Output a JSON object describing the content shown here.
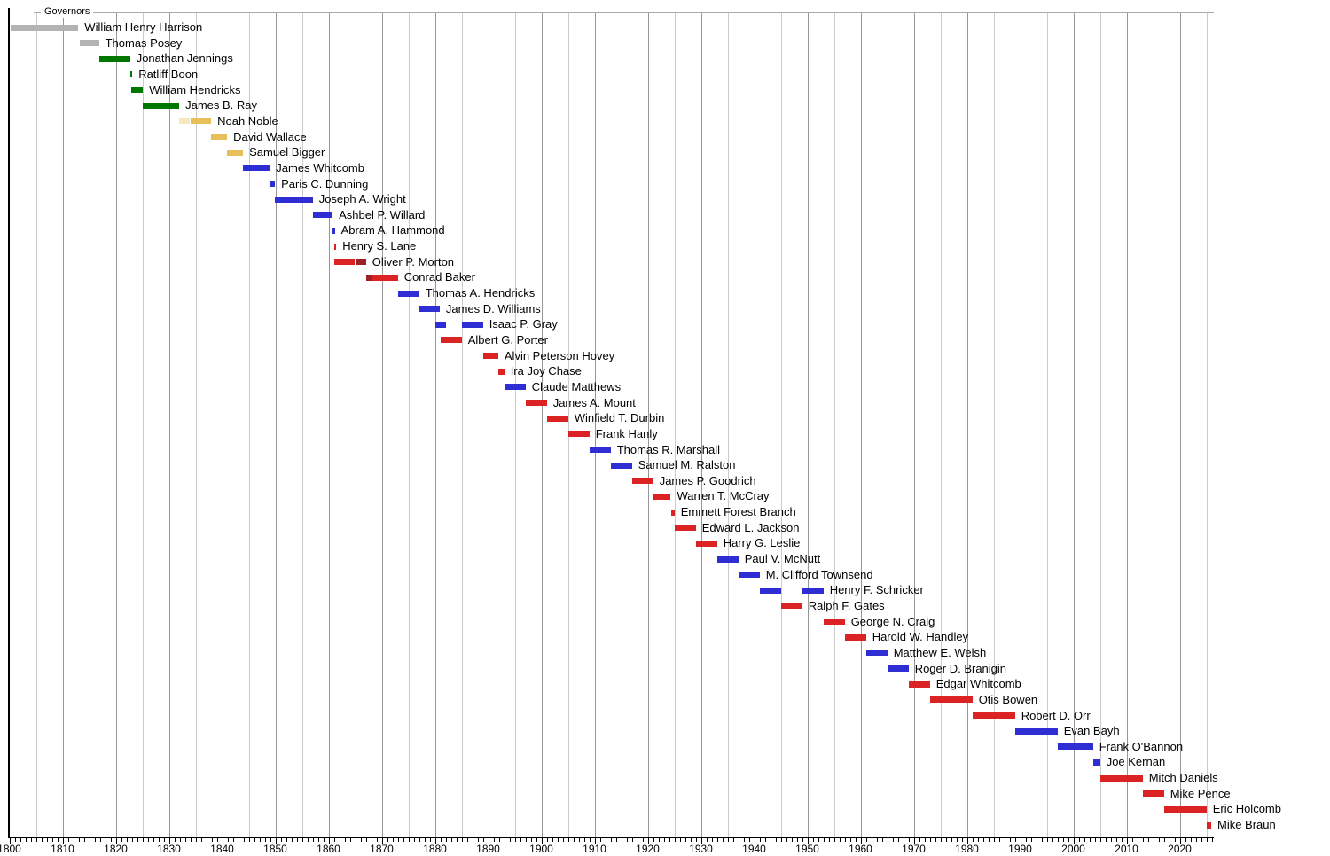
{
  "chart_data": {
    "type": "timeline",
    "title": "Governors",
    "x_axis": {
      "min": 1800,
      "max": 2026.3,
      "gridline_interval_years": 5,
      "label_interval_years": 10,
      "tick_labels": [
        "1800",
        "1810",
        "1820",
        "1830",
        "1840",
        "1850",
        "1860",
        "1870",
        "1880",
        "1890",
        "1900",
        "1910",
        "1920",
        "1930",
        "1940",
        "1950",
        "1960",
        "1970",
        "1980",
        "1990",
        "2000",
        "2010",
        "2020"
      ]
    },
    "party_colors": {
      "territorial": "#b3b3b3",
      "democratic_republican": "#007700",
      "national_republican": "#f6e8bb",
      "whig": "#e7c05c",
      "democratic": "#2e2ed4",
      "republican": "#dc2323",
      "national_union": "#9b2126"
    },
    "rows": [
      {
        "name": "William Henry Harrison",
        "segments": [
          {
            "start": 1800.3,
            "end": 1812.97,
            "party": "territorial"
          }
        ]
      },
      {
        "name": "Thomas Posey",
        "segments": [
          {
            "start": 1813.2,
            "end": 1816.85,
            "party": "territorial"
          }
        ]
      },
      {
        "name": "Jonathan Jennings",
        "segments": [
          {
            "start": 1816.85,
            "end": 1822.7,
            "party": "democratic_republican"
          }
        ]
      },
      {
        "name": "Ratliff Boon",
        "segments": [
          {
            "start": 1822.7,
            "end": 1823.0,
            "party": "democratic_republican"
          }
        ]
      },
      {
        "name": "William Hendricks",
        "segments": [
          {
            "start": 1822.95,
            "end": 1825.12,
            "party": "democratic_republican"
          }
        ]
      },
      {
        "name": "James B. Ray",
        "segments": [
          {
            "start": 1825.12,
            "end": 1831.93,
            "party": "democratic_republican"
          }
        ]
      },
      {
        "name": "Noah Noble",
        "segments": [
          {
            "start": 1831.93,
            "end": 1834.0,
            "party": "national_republican"
          },
          {
            "start": 1834.0,
            "end": 1837.93,
            "party": "whig"
          }
        ]
      },
      {
        "name": "David Wallace",
        "segments": [
          {
            "start": 1837.93,
            "end": 1840.93,
            "party": "whig"
          }
        ]
      },
      {
        "name": "Samuel Bigger",
        "segments": [
          {
            "start": 1840.93,
            "end": 1843.94,
            "party": "whig"
          }
        ]
      },
      {
        "name": "James Whitcomb",
        "segments": [
          {
            "start": 1843.94,
            "end": 1848.97,
            "party": "democratic"
          }
        ]
      },
      {
        "name": "Paris C. Dunning",
        "segments": [
          {
            "start": 1848.97,
            "end": 1849.93,
            "party": "democratic"
          }
        ]
      },
      {
        "name": "Joseph A. Wright",
        "segments": [
          {
            "start": 1849.93,
            "end": 1857.03,
            "party": "democratic"
          }
        ]
      },
      {
        "name": "Ashbel P. Willard",
        "segments": [
          {
            "start": 1857.03,
            "end": 1860.76,
            "party": "democratic"
          }
        ]
      },
      {
        "name": "Abram A. Hammond",
        "segments": [
          {
            "start": 1860.76,
            "end": 1861.04,
            "party": "democratic"
          }
        ]
      },
      {
        "name": "Henry S. Lane",
        "segments": [
          {
            "start": 1861.04,
            "end": 1861.1,
            "party": "republican"
          }
        ]
      },
      {
        "name": "Oliver P. Morton",
        "segments": [
          {
            "start": 1861.04,
            "end": 1865.0,
            "party": "republican"
          },
          {
            "start": 1865.0,
            "end": 1867.05,
            "party": "national_union"
          }
        ]
      },
      {
        "name": "Conrad Baker",
        "segments": [
          {
            "start": 1867.05,
            "end": 1868.1,
            "party": "national_union"
          },
          {
            "start": 1868.1,
            "end": 1873.04,
            "party": "republican"
          }
        ]
      },
      {
        "name": "Thomas A. Hendricks",
        "segments": [
          {
            "start": 1873.04,
            "end": 1877.04,
            "party": "democratic"
          }
        ]
      },
      {
        "name": "James D. Williams",
        "segments": [
          {
            "start": 1877.04,
            "end": 1880.9,
            "party": "democratic"
          }
        ]
      },
      {
        "name": "Isaac P. Gray",
        "segments": [
          {
            "start": 1880.0,
            "end": 1882.0,
            "party": "democratic"
          },
          {
            "start": 1885.04,
            "end": 1889.04,
            "party": "democratic"
          }
        ]
      },
      {
        "name": "Albert G. Porter",
        "segments": [
          {
            "start": 1881.04,
            "end": 1885.04,
            "party": "republican"
          }
        ]
      },
      {
        "name": "Alvin Peterson Hovey",
        "segments": [
          {
            "start": 1889.04,
            "end": 1891.9,
            "party": "republican"
          }
        ]
      },
      {
        "name": "Ira Joy Chase",
        "segments": [
          {
            "start": 1891.9,
            "end": 1893.04,
            "party": "republican"
          }
        ]
      },
      {
        "name": "Claude Matthews",
        "segments": [
          {
            "start": 1893.04,
            "end": 1897.04,
            "party": "democratic"
          }
        ]
      },
      {
        "name": "James A. Mount",
        "segments": [
          {
            "start": 1897.04,
            "end": 1901.04,
            "party": "republican"
          }
        ]
      },
      {
        "name": "Winfield T. Durbin",
        "segments": [
          {
            "start": 1901.04,
            "end": 1905.04,
            "party": "republican"
          }
        ]
      },
      {
        "name": "Frank Hanly",
        "segments": [
          {
            "start": 1905.04,
            "end": 1909.04,
            "party": "republican"
          }
        ]
      },
      {
        "name": "Thomas R. Marshall",
        "segments": [
          {
            "start": 1909.04,
            "end": 1913.04,
            "party": "democratic"
          }
        ]
      },
      {
        "name": "Samuel M. Ralston",
        "segments": [
          {
            "start": 1913.04,
            "end": 1917.04,
            "party": "democratic"
          }
        ]
      },
      {
        "name": "James P. Goodrich",
        "segments": [
          {
            "start": 1917.04,
            "end": 1921.04,
            "party": "republican"
          }
        ]
      },
      {
        "name": "Warren T. McCray",
        "segments": [
          {
            "start": 1921.04,
            "end": 1924.33,
            "party": "republican"
          }
        ]
      },
      {
        "name": "Emmett Forest Branch",
        "segments": [
          {
            "start": 1924.33,
            "end": 1925.04,
            "party": "republican"
          }
        ]
      },
      {
        "name": "Edward L. Jackson",
        "segments": [
          {
            "start": 1925.04,
            "end": 1929.04,
            "party": "republican"
          }
        ]
      },
      {
        "name": "Harry G. Leslie",
        "segments": [
          {
            "start": 1929.04,
            "end": 1933.04,
            "party": "republican"
          }
        ]
      },
      {
        "name": "Paul V. McNutt",
        "segments": [
          {
            "start": 1933.04,
            "end": 1937.04,
            "party": "democratic"
          }
        ]
      },
      {
        "name": "M. Clifford Townsend",
        "segments": [
          {
            "start": 1937.04,
            "end": 1941.04,
            "party": "democratic"
          }
        ]
      },
      {
        "name": "Henry F. Schricker",
        "segments": [
          {
            "start": 1941.04,
            "end": 1945.04,
            "party": "democratic"
          },
          {
            "start": 1949.04,
            "end": 1953.04,
            "party": "democratic"
          }
        ]
      },
      {
        "name": "Ralph F. Gates",
        "segments": [
          {
            "start": 1945.04,
            "end": 1949.04,
            "party": "republican"
          }
        ]
      },
      {
        "name": "George N. Craig",
        "segments": [
          {
            "start": 1953.04,
            "end": 1957.04,
            "party": "republican"
          }
        ]
      },
      {
        "name": "Harold W. Handley",
        "segments": [
          {
            "start": 1957.04,
            "end": 1961.04,
            "party": "republican"
          }
        ]
      },
      {
        "name": "Matthew E. Welsh",
        "segments": [
          {
            "start": 1961.04,
            "end": 1965.04,
            "party": "democratic"
          }
        ]
      },
      {
        "name": "Roger D. Branigin",
        "segments": [
          {
            "start": 1965.04,
            "end": 1969.04,
            "party": "democratic"
          }
        ]
      },
      {
        "name": "Edgar Whitcomb",
        "segments": [
          {
            "start": 1969.04,
            "end": 1973.04,
            "party": "republican"
          }
        ]
      },
      {
        "name": "Otis Bowen",
        "segments": [
          {
            "start": 1973.04,
            "end": 1981.04,
            "party": "republican"
          }
        ]
      },
      {
        "name": "Robert D. Orr",
        "segments": [
          {
            "start": 1981.04,
            "end": 1989.04,
            "party": "republican"
          }
        ]
      },
      {
        "name": "Evan Bayh",
        "segments": [
          {
            "start": 1989.04,
            "end": 1997.04,
            "party": "democratic"
          }
        ]
      },
      {
        "name": "Frank O'Bannon",
        "segments": [
          {
            "start": 1997.04,
            "end": 2003.71,
            "party": "democratic"
          }
        ]
      },
      {
        "name": "Joe Kernan",
        "segments": [
          {
            "start": 2003.71,
            "end": 2005.04,
            "party": "democratic"
          }
        ]
      },
      {
        "name": "Mitch Daniels",
        "segments": [
          {
            "start": 2005.04,
            "end": 2013.04,
            "party": "republican"
          }
        ]
      },
      {
        "name": "Mike Pence",
        "segments": [
          {
            "start": 2013.04,
            "end": 2017.04,
            "party": "republican"
          }
        ]
      },
      {
        "name": "Eric Holcomb",
        "segments": [
          {
            "start": 2017.04,
            "end": 2025.04,
            "party": "republican"
          }
        ]
      },
      {
        "name": "Mike Braun",
        "segments": [
          {
            "start": 2025.04,
            "end": 2025.92,
            "party": "republican"
          }
        ]
      }
    ]
  }
}
